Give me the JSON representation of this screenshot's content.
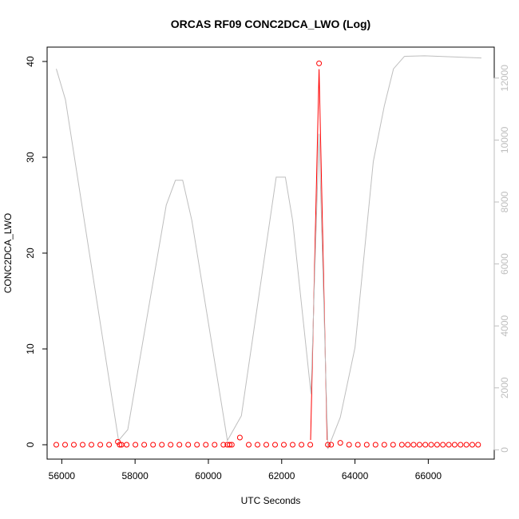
{
  "chart_data": {
    "type": "scatter",
    "title": "ORCAS RF09 CONC2DCA_LWO (Log)",
    "xlabel": "UTC Seconds",
    "ylabel": "CONC2DCA_LWO",
    "y2label": "",
    "xlim": [
      55600,
      67800
    ],
    "ylim": [
      -1.5,
      41.5
    ],
    "y2lim": [
      -300,
      13000
    ],
    "x_ticks": [
      56000,
      58000,
      60000,
      62000,
      64000,
      66000
    ],
    "x_tick_labels": [
      "56000",
      "58000",
      "60000",
      "62000",
      "64000",
      "66000"
    ],
    "y_ticks": [
      0,
      10,
      20,
      30,
      40
    ],
    "y_tick_labels": [
      "0",
      "10",
      "20",
      "30",
      "40"
    ],
    "y2_ticks": [
      0,
      2000,
      4000,
      6000,
      8000,
      10000,
      12000
    ],
    "y2_tick_labels": [
      "0",
      "2000",
      "4000",
      "6000",
      "8000",
      "10000",
      "12000"
    ],
    "grid": false,
    "colors": {
      "points": "#ff0000",
      "spike_line": "#ff0000",
      "altitude_line": "#bebebe",
      "axis": "#000000",
      "right_axis": "#bebebe"
    },
    "series": [
      {
        "style": "points",
        "axis": "left",
        "x": [
          55850,
          56090,
          56330,
          56570,
          56810,
          57050,
          57290,
          57530,
          57580,
          57630,
          57770,
          58010,
          58250,
          58490,
          58730,
          58970,
          59210,
          59450,
          59690,
          59930,
          60170,
          60410,
          60520,
          60580,
          60640,
          60860,
          61100,
          61340,
          61580,
          61820,
          62060,
          62300,
          62540,
          62780,
          63020,
          63260,
          63350,
          63600,
          63840,
          64080,
          64320,
          64560,
          64800,
          65040,
          65280,
          65440,
          65600,
          65760,
          65920,
          66080,
          66240,
          66400,
          66560,
          66720,
          66880,
          67040,
          67200,
          67360
        ],
        "y": [
          0,
          0,
          0,
          0,
          0,
          0,
          0,
          0.3,
          0,
          0,
          0,
          0,
          0,
          0,
          0,
          0,
          0,
          0,
          0,
          0,
          0,
          0,
          0,
          0,
          0,
          0.75,
          0,
          0,
          0,
          0,
          0,
          0,
          0,
          0,
          39.8,
          0,
          0,
          0.2,
          0,
          0,
          0,
          0,
          0,
          0,
          0,
          0,
          0,
          0,
          0,
          0,
          0,
          0,
          0,
          0,
          0,
          0,
          0,
          0
        ]
      },
      {
        "style": "line",
        "axis": "left",
        "x": [
          62790,
          63020,
          63240
        ],
        "y": [
          0.5,
          39.2,
          0.5
        ]
      },
      {
        "style": "line",
        "axis": "right",
        "x": [
          55850,
          56100,
          57550,
          57800,
          58850,
          59100,
          59300,
          59550,
          60520,
          60900,
          61850,
          62100,
          62300,
          62550,
          62800,
          63020,
          63260,
          63600,
          64000,
          64500,
          64800,
          65050,
          65350,
          65900,
          67450
        ],
        "y": [
          12300,
          11300,
          300,
          650,
          7900,
          8700,
          8700,
          7400,
          300,
          1100,
          8800,
          8800,
          7400,
          4600,
          1800,
          10200,
          30,
          1050,
          3300,
          9300,
          11100,
          12300,
          12700,
          12720,
          12650
        ]
      }
    ]
  }
}
